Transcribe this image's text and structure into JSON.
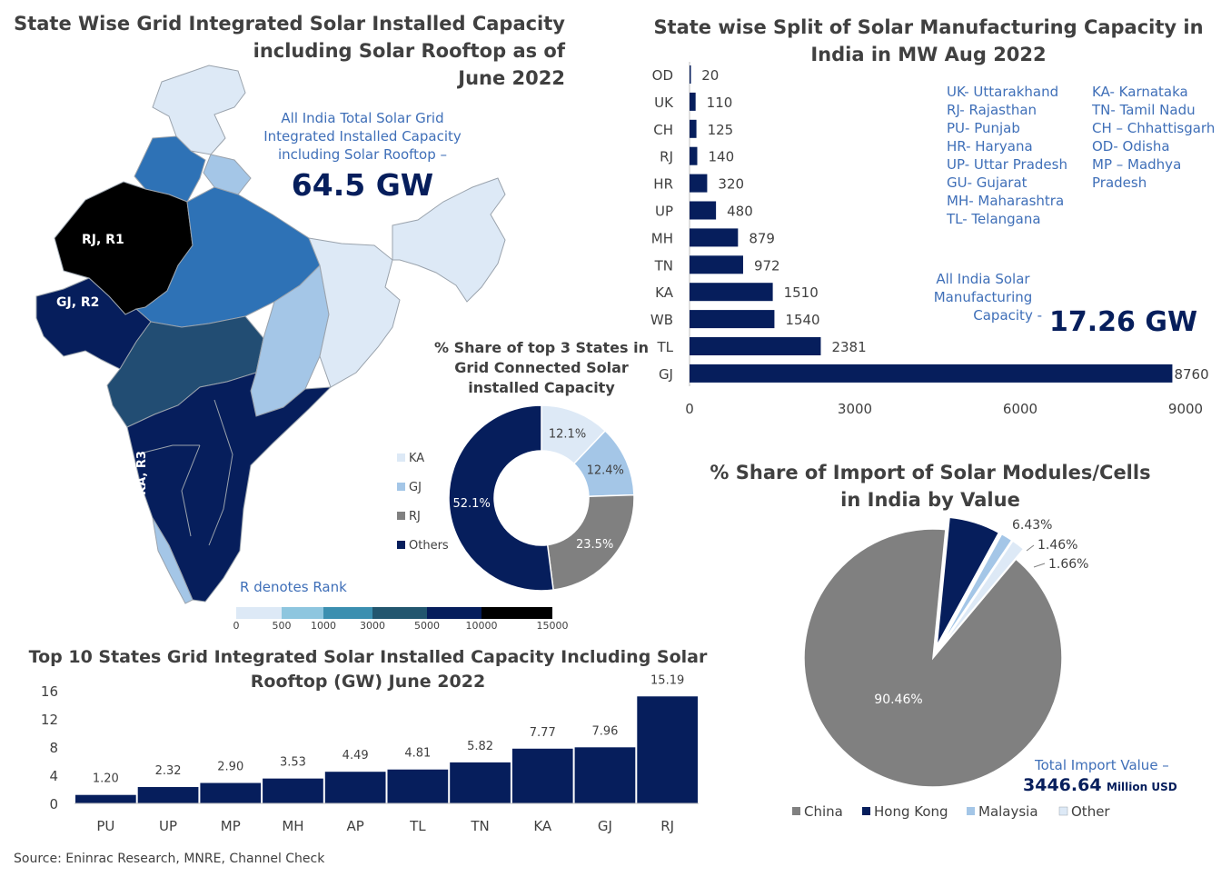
{
  "colors": {
    "navy": "#061e5c",
    "black": "#000000",
    "dark_slate": "#224d73",
    "mid_blue": "#2e72b6",
    "light_blue": "#a4c6e7",
    "pale_blue": "#dde9f6",
    "grey": "#808080",
    "title_grey": "#404040",
    "note_blue": "#3f6fb8"
  },
  "map": {
    "title_lines": [
      "State Wise Grid Integrated Solar Installed Capacity",
      "including Solar Rooftop as of",
      "June 2022"
    ],
    "total_note_lines": [
      "All India Total Solar Grid",
      "Integrated Installed Capacity",
      "including Solar Rooftop –"
    ],
    "total_value": "64.5 GW",
    "rank_labels": [
      "RJ, R1",
      "GJ, R2",
      "KA, R3"
    ],
    "rank_note": "R denotes Rank",
    "scale_ticks": [
      "0",
      "500",
      "1000",
      "3000",
      "5000",
      "10000",
      "15000"
    ],
    "scale_colors": [
      "#dde9f6",
      "#8ec6df",
      "#3b8fb0",
      "#22566f",
      "#061e5c",
      "#000000"
    ]
  },
  "donut": {
    "title_lines": [
      "% Share of top 3 States in",
      "Grid Connected Solar",
      "installed Capacity"
    ],
    "legend": [
      {
        "label": "KA",
        "color": "#dde9f6"
      },
      {
        "label": "GJ",
        "color": "#a4c6e7"
      },
      {
        "label": "RJ",
        "color": "#808080"
      },
      {
        "label": "Others",
        "color": "#061e5c"
      }
    ],
    "slice_labels": [
      "12.1%",
      "12.4%",
      "23.5%",
      "52.1%"
    ]
  },
  "manufacturing": {
    "title_lines": [
      "State wise Split of Solar Manufacturing Capacity in",
      "India in MW Aug 2022"
    ],
    "abbrev_col1": [
      "UK- Uttarakhand",
      "RJ- Rajasthan",
      "PU- Punjab",
      "HR- Haryana",
      "UP- Uttar Pradesh",
      "GU- Gujarat",
      "MH- Maharashtra",
      "TL- Telangana"
    ],
    "abbrev_col2": [
      "KA- Karnataka",
      "TN- Tamil Nadu",
      "CH – Chhattisgarh",
      "OD- Odisha",
      "MP – Madhya",
      "Pradesh"
    ],
    "total_note_lines": [
      "All India Solar",
      "Manufacturing",
      "Capacity -"
    ],
    "total_value": "17.26 GW"
  },
  "import": {
    "title_lines": [
      "% Share of Import of Solar Modules/Cells",
      "in India by Value"
    ],
    "total_label": "Total Import Value –",
    "total_value": "3446.64",
    "total_unit": "Million USD"
  },
  "top10": {
    "title_lines": [
      "Top 10 States Grid Integrated Solar Installed Capacity Including Solar",
      "Rooftop (GW) June 2022"
    ]
  },
  "source": "Source: Eninrac Research, MNRE, Channel Check",
  "chart_data": [
    {
      "type": "pie",
      "title": "% Share of top 3 States in Grid Connected Solar installed Capacity",
      "donut": true,
      "categories": [
        "KA",
        "GJ",
        "RJ",
        "Others"
      ],
      "values": [
        12.1,
        12.4,
        23.5,
        52.1
      ],
      "colors": [
        "#dde9f6",
        "#a4c6e7",
        "#808080",
        "#061e5c"
      ],
      "legend": "left"
    },
    {
      "type": "bar",
      "orientation": "horizontal",
      "title": "State wise Split of Solar Manufacturing Capacity in India in MW Aug 2022",
      "categories": [
        "OD",
        "UK",
        "CH",
        "RJ",
        "HR",
        "UP",
        "MH",
        "TN",
        "KA",
        "WB",
        "TL",
        "GJ"
      ],
      "values": [
        20,
        110,
        125,
        140,
        320,
        480,
        879,
        972,
        1510,
        1540,
        2381,
        8760
      ],
      "xlim": [
        0,
        9000
      ],
      "xticks": [
        0,
        3000,
        6000,
        9000
      ],
      "color": "#061e5c",
      "grid": false
    },
    {
      "type": "pie",
      "title": "% Share of Import of Solar Modules/Cells in India by Value",
      "categories": [
        "China",
        "Hong Kong",
        "Malaysia",
        "Other"
      ],
      "values": [
        90.46,
        6.43,
        1.46,
        1.66
      ],
      "labels": [
        "90.46%",
        "6.43%",
        "1.46%",
        "1.66%"
      ],
      "colors": [
        "#808080",
        "#061e5c",
        "#a4c6e7",
        "#dde9f6"
      ],
      "legend": "bottom"
    },
    {
      "type": "bar",
      "title": "Top 10 States Grid Integrated Solar Installed Capacity Including Solar Rooftop (GW) June 2022",
      "categories": [
        "PU",
        "UP",
        "MP",
        "MH",
        "AP",
        "TL",
        "TN",
        "KA",
        "GJ",
        "RJ"
      ],
      "values": [
        1.2,
        2.32,
        2.9,
        3.53,
        4.49,
        4.81,
        5.82,
        7.77,
        7.96,
        15.19
      ],
      "labels": [
        "1.20",
        "2.32",
        "2.90",
        "3.53",
        "4.49",
        "4.81",
        "5.82",
        "7.77",
        "7.96",
        "15.19"
      ],
      "ylim": [
        0,
        16
      ],
      "yticks": [
        0,
        4,
        8,
        12,
        16
      ],
      "color": "#061e5c",
      "grid": false
    }
  ]
}
